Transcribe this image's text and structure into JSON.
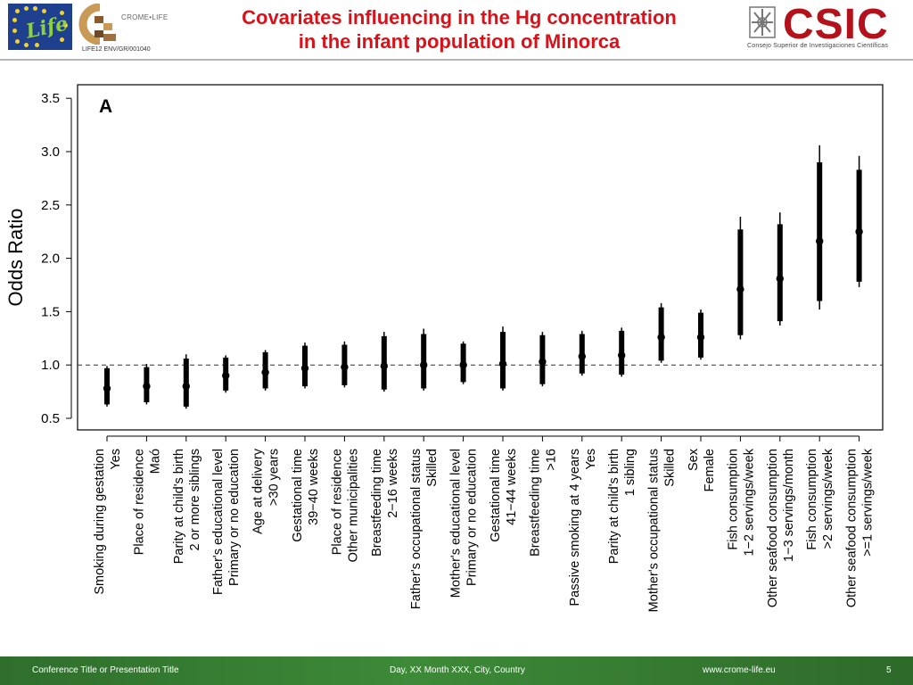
{
  "header": {
    "title_line1": "Covariates influencing in the Hg concentration",
    "title_line2": "in the infant population of Minorca",
    "eu_logo_text": "Life",
    "crome_logo_text": "CROME•LIFE",
    "life_code": "LIFE12 ENV/GR/001040",
    "csic_logo_text": "CSIC",
    "csic_subtitle": "Consejo Superior de Investigaciones Científicas"
  },
  "footer": {
    "conference": "Conference Title or Presentation Title",
    "date_place": "Day, XX Month XXX, City, Country",
    "url": "www.crome-life.eu",
    "page_number": "5"
  },
  "colors": {
    "title_red": "#d9121a",
    "csic_red": "#b3121a",
    "footer_green": "#3d8a38",
    "marks": "#000000"
  },
  "chart_data": {
    "type": "forest",
    "panel_label": "A",
    "ylabel": "Odds Ratio",
    "xlabel": "",
    "ylim": [
      0.45,
      3.6
    ],
    "yticks": [
      0.5,
      1.0,
      1.5,
      2.0,
      2.5,
      3.0,
      3.5
    ],
    "ytick_labels": [
      "0.5",
      "1.0",
      "1.5",
      "2.0",
      "2.5",
      "3.0",
      "3.5"
    ],
    "reference_line": 1.0,
    "grid": false,
    "categories": [
      {
        "variable": "Smoking during gestation",
        "level": "Yes",
        "or": 0.78,
        "ci_inner": [
          0.63,
          0.97
        ],
        "ci_outer": [
          0.61,
          0.99
        ]
      },
      {
        "variable": "Place of residence",
        "level": "Maó",
        "or": 0.8,
        "ci_inner": [
          0.65,
          0.98
        ],
        "ci_outer": [
          0.63,
          1.01
        ]
      },
      {
        "variable": "Parity at child's birth",
        "level": "2 or more siblings",
        "or": 0.8,
        "ci_inner": [
          0.61,
          1.06
        ],
        "ci_outer": [
          0.59,
          1.1
        ]
      },
      {
        "variable": "Father's educational level",
        "level": "Primary or no education",
        "or": 0.9,
        "ci_inner": [
          0.76,
          1.07
        ],
        "ci_outer": [
          0.74,
          1.09
        ]
      },
      {
        "variable": "Age at delivery",
        "level": ">30 years",
        "or": 0.93,
        "ci_inner": [
          0.78,
          1.12
        ],
        "ci_outer": [
          0.76,
          1.14
        ]
      },
      {
        "variable": "Gestational time",
        "level": "39−40 weeks",
        "or": 0.97,
        "ci_inner": [
          0.8,
          1.18
        ],
        "ci_outer": [
          0.78,
          1.21
        ]
      },
      {
        "variable": "Place of residence",
        "level": "Other municipalities",
        "or": 0.98,
        "ci_inner": [
          0.81,
          1.19
        ],
        "ci_outer": [
          0.79,
          1.22
        ]
      },
      {
        "variable": "Breastfeeding time",
        "level": "2−16 weeks",
        "or": 0.99,
        "ci_inner": [
          0.77,
          1.27
        ],
        "ci_outer": [
          0.75,
          1.31
        ]
      },
      {
        "variable": "Father's occupational status",
        "level": "Skilled",
        "or": 1.0,
        "ci_inner": [
          0.78,
          1.29
        ],
        "ci_outer": [
          0.76,
          1.34
        ]
      },
      {
        "variable": "Mother's educational level",
        "level": "Primary or no education",
        "or": 1.0,
        "ci_inner": [
          0.84,
          1.2
        ],
        "ci_outer": [
          0.82,
          1.22
        ]
      },
      {
        "variable": "Gestational time",
        "level": "41−44 weeks",
        "or": 1.01,
        "ci_inner": [
          0.78,
          1.31
        ],
        "ci_outer": [
          0.76,
          1.36
        ]
      },
      {
        "variable": "Breastfeeding time",
        "level": ">16",
        "or": 1.03,
        "ci_inner": [
          0.82,
          1.28
        ],
        "ci_outer": [
          0.8,
          1.31
        ]
      },
      {
        "variable": "Passive smoking at 4 years",
        "level": "Yes",
        "or": 1.08,
        "ci_inner": [
          0.92,
          1.29
        ],
        "ci_outer": [
          0.9,
          1.32
        ]
      },
      {
        "variable": "Parity at child's birth",
        "level": "1 sibling",
        "or": 1.09,
        "ci_inner": [
          0.91,
          1.32
        ],
        "ci_outer": [
          0.89,
          1.35
        ]
      },
      {
        "variable": "Mother's occupational status",
        "level": "Skilled",
        "or": 1.26,
        "ci_inner": [
          1.04,
          1.54
        ],
        "ci_outer": [
          1.02,
          1.58
        ]
      },
      {
        "variable": "Sex",
        "level": "Female",
        "or": 1.26,
        "ci_inner": [
          1.07,
          1.49
        ],
        "ci_outer": [
          1.05,
          1.52
        ]
      },
      {
        "variable": "Fish consumption",
        "level": "1−2 servings/week",
        "or": 1.71,
        "ci_inner": [
          1.28,
          2.27
        ],
        "ci_outer": [
          1.24,
          2.39
        ]
      },
      {
        "variable": "Other seafood consumption",
        "level": "1−3 servings/month",
        "or": 1.81,
        "ci_inner": [
          1.41,
          2.32
        ],
        "ci_outer": [
          1.37,
          2.43
        ]
      },
      {
        "variable": "Fish consumption",
        "level": ">2 servings/week",
        "or": 2.16,
        "ci_inner": [
          1.6,
          2.9
        ],
        "ci_outer": [
          1.52,
          3.06
        ]
      },
      {
        "variable": "Other seafood consumption",
        "level": ">=1 servings/week",
        "or": 2.25,
        "ci_inner": [
          1.78,
          2.83
        ],
        "ci_outer": [
          1.73,
          2.96
        ]
      }
    ]
  }
}
